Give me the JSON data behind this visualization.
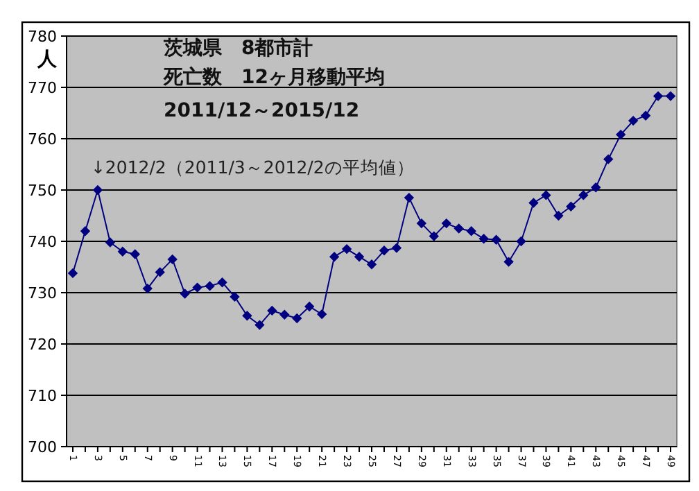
{
  "chart_data": {
    "type": "line",
    "title": "茨城県　8都市計",
    "subtitle": "死亡数　12ヶ月移動平均",
    "ylabel": "人",
    "annotations": [
      "2011/12～2015/12",
      {
        "text": "↓2012/2（2011/3～2012/2の平均値）",
        "x": "3",
        "y": 750
      }
    ],
    "categories": [
      "1",
      null,
      "3",
      null,
      "5",
      null,
      "7",
      null,
      "9",
      null,
      "11",
      null,
      "13",
      null,
      "15",
      null,
      "17",
      null,
      "19",
      null,
      "21",
      null,
      "23",
      null,
      "25",
      null,
      "27",
      null,
      "29",
      null,
      "31",
      null,
      "33",
      null,
      "35",
      null,
      "37",
      null,
      "39",
      null,
      "41",
      null,
      "43",
      null,
      "45",
      null,
      "47",
      null,
      "49"
    ],
    "series": [
      {
        "color": "#000080",
        "values": [
          733.8,
          742,
          750,
          739.8,
          738,
          737.5,
          730.8,
          734,
          736.5,
          729.8,
          731,
          731.3,
          732,
          729.2,
          725.5,
          723.7,
          726.5,
          725.7,
          725,
          727.3,
          725.8,
          737,
          738.5,
          737,
          735.5,
          738.2,
          738.7,
          748.5,
          743.5,
          741,
          743.5,
          742.5,
          742,
          740.5,
          740.3,
          736,
          740,
          747.5,
          749,
          745,
          746.8,
          749,
          750.5,
          756,
          760.8,
          763.5,
          764.5,
          768.3,
          768.3
        ]
      }
    ],
    "ylim": [
      700,
      780
    ],
    "yticks": [
      700,
      710,
      720,
      730,
      740,
      750,
      760,
      770,
      780
    ],
    "grid": "y",
    "marker": "diamond",
    "line_style": "solid"
  }
}
